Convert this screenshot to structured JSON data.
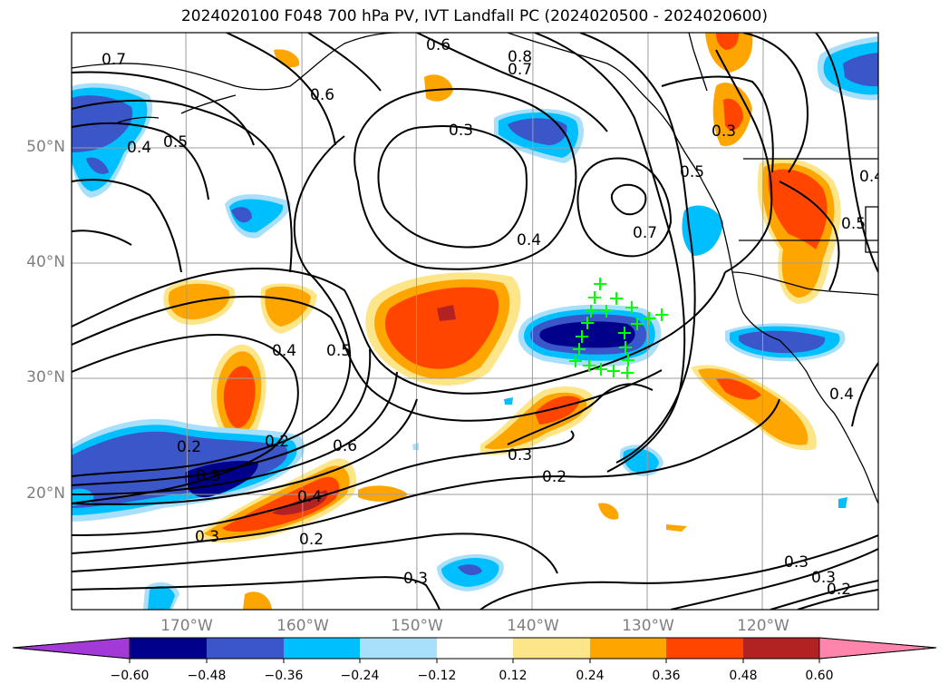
{
  "title": "2024020100 F048 700 hPa PV, IVT Landfall PC (2024020500 - 2024020600)",
  "latitude_labels": [
    "50°N",
    "40°N",
    "30°N",
    "20°N"
  ],
  "longitude_labels": [
    "170°W",
    "160°W",
    "150°W",
    "140°W",
    "130°W",
    "120°W"
  ],
  "contour_labels": [
    "0.7",
    "0.6",
    "0.5",
    "0.4",
    "0.6",
    "0.8",
    "0.7",
    "0.3",
    "0.4",
    "0.7",
    "0.5",
    "0.3",
    "0.4",
    "0.5",
    "0.4",
    "0.5",
    "0.2",
    "0.2",
    "0.6",
    "0.3",
    "0.4",
    "0.3",
    "0.2",
    "0.3",
    "0.2",
    "0.3",
    "0.3",
    "0.3",
    "0.2",
    "0.4"
  ],
  "colorbar": {
    "ticks": [
      "−0.60",
      "−0.48",
      "−0.36",
      "−0.24",
      "−0.12",
      "0.12",
      "0.24",
      "0.36",
      "0.48",
      "0.60"
    ],
    "colors": [
      "#a33ad8",
      "#00008b",
      "#3a56c9",
      "#00bfff",
      "#a8dffa",
      "#ffffff",
      "#fde68a",
      "#ffa500",
      "#ff4500",
      "#b22222",
      "#ff85ad"
    ]
  },
  "markers": {
    "symbol": "+",
    "color": "#00ff00",
    "count": 20
  }
}
